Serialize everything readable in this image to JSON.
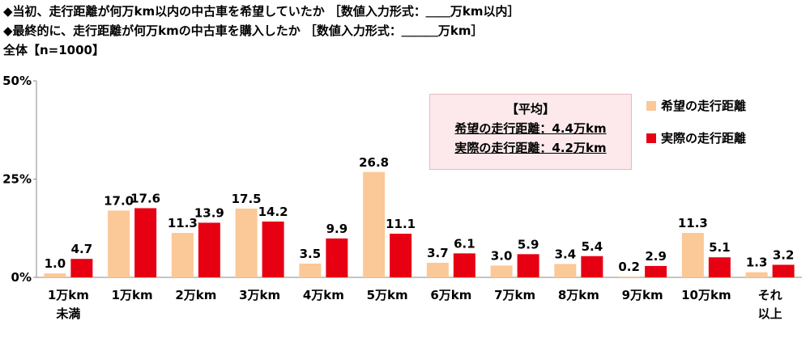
{
  "header": {
    "line1": "◆当初、走行距離が何万km以内の中古車を希望していたか ［数値入力形式：＿＿万km以内］",
    "line2": "◆最終的に、走行距離が何万kmの中古車を購入したか ［数値入力形式：＿＿＿万km］",
    "line3": "全体【n=1000】"
  },
  "average_box": {
    "title": "【平均】",
    "desired": "希望の走行距離：4.4万km",
    "actual": "実際の走行距離：4.2万km"
  },
  "colors": {
    "desired": "#fbc898",
    "actual": "#e60012",
    "axis": "#888888"
  },
  "chart_data": {
    "type": "bar",
    "categories": [
      "1万km\n未満",
      "1万km",
      "2万km",
      "3万km",
      "4万km",
      "5万km",
      "6万km",
      "7万km",
      "8万km",
      "9万km",
      "10万km",
      "それ\n以上"
    ],
    "series": [
      {
        "name": "希望の走行距離",
        "values": [
          1.0,
          17.0,
          11.3,
          17.5,
          3.5,
          26.8,
          3.7,
          3.0,
          3.4,
          0.2,
          11.3,
          1.3
        ]
      },
      {
        "name": "実際の走行距離",
        "values": [
          4.7,
          17.6,
          13.9,
          14.2,
          9.9,
          11.1,
          6.1,
          5.9,
          5.4,
          2.9,
          5.1,
          3.2
        ]
      }
    ],
    "yticks": [
      "0%",
      "25%",
      "50%"
    ],
    "ylim": [
      0,
      50
    ],
    "legend_position": "top-right"
  }
}
